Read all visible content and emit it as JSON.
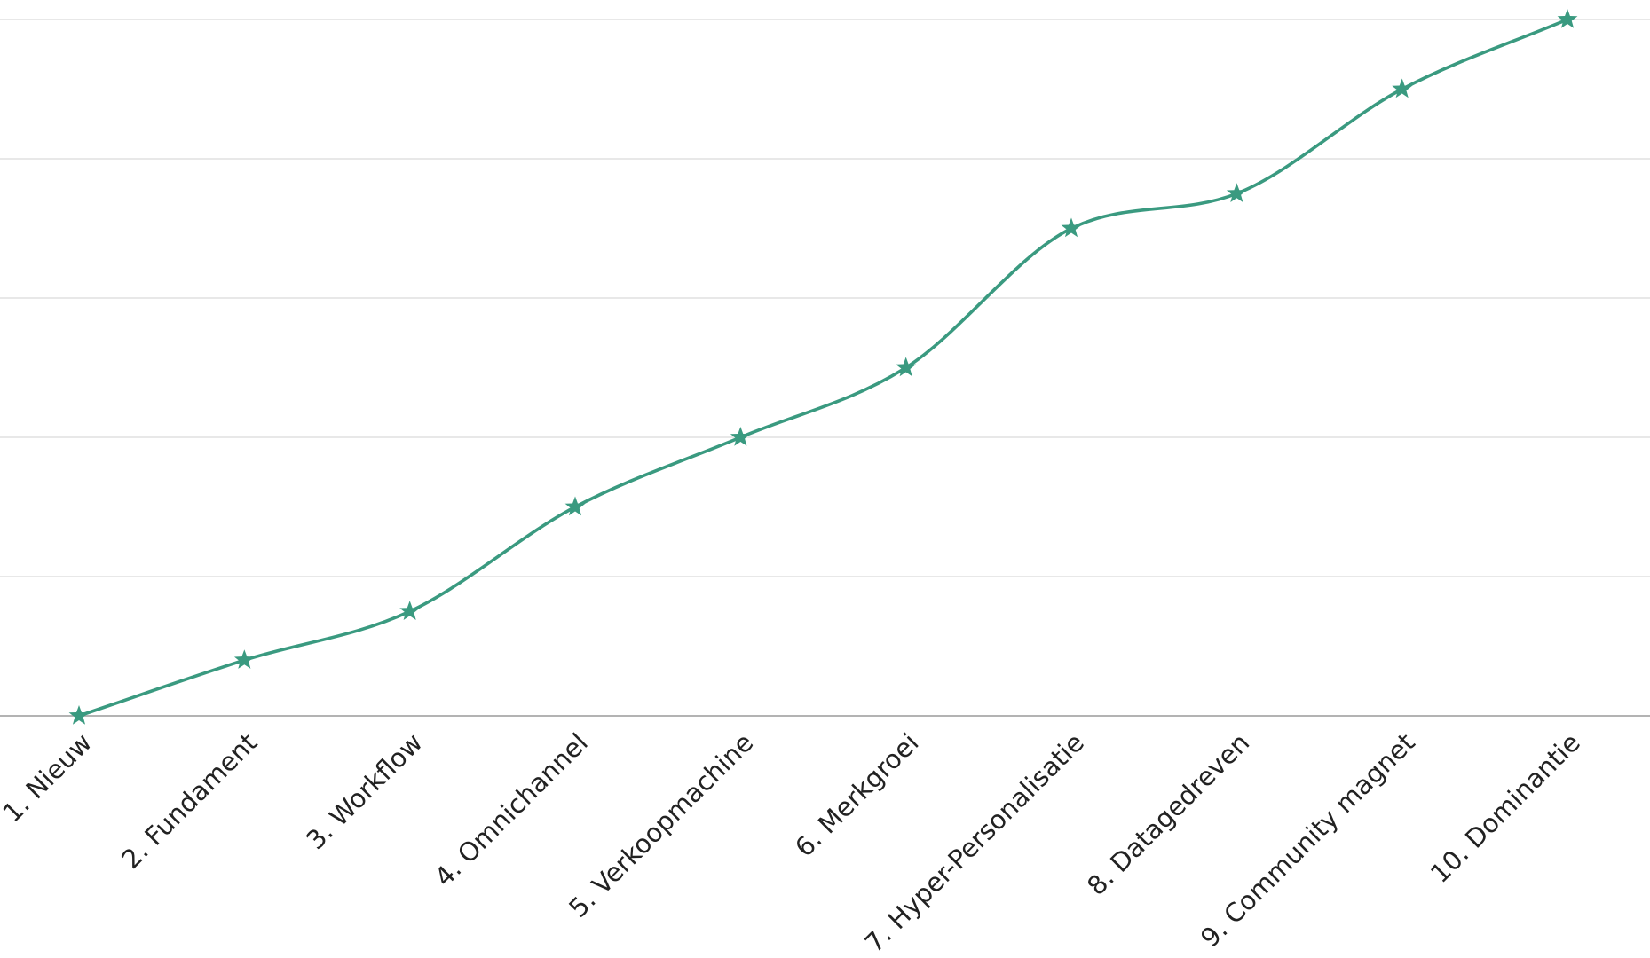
{
  "chart_data": {
    "type": "line",
    "title": "",
    "xlabel": "",
    "ylabel": "",
    "categories": [
      "1. Nieuw",
      "2. Fundament",
      "3. Workflow",
      "4. Omnichannel",
      "5. Verkoopmachine",
      "6. Merkgroei",
      "7. Hyper-Personalisatie",
      "8. Datagedreven",
      "9. Community magnet",
      "10. Dominantie"
    ],
    "series": [
      {
        "values": [
          0,
          0.8,
          1.5,
          3,
          4,
          5,
          7,
          7.5,
          9,
          10
        ]
      }
    ],
    "ylim": [
      0,
      10
    ],
    "y_gridlines": [
      0,
      2,
      4,
      6,
      8,
      10
    ],
    "y_tick_labels_shown": false,
    "legend": "none",
    "line_smooth": true,
    "marker": "star",
    "colors": {
      "series": "#3a9a80",
      "grid": "#d9d9d9",
      "axis": "#9a9a9a",
      "text": "#222222"
    }
  }
}
